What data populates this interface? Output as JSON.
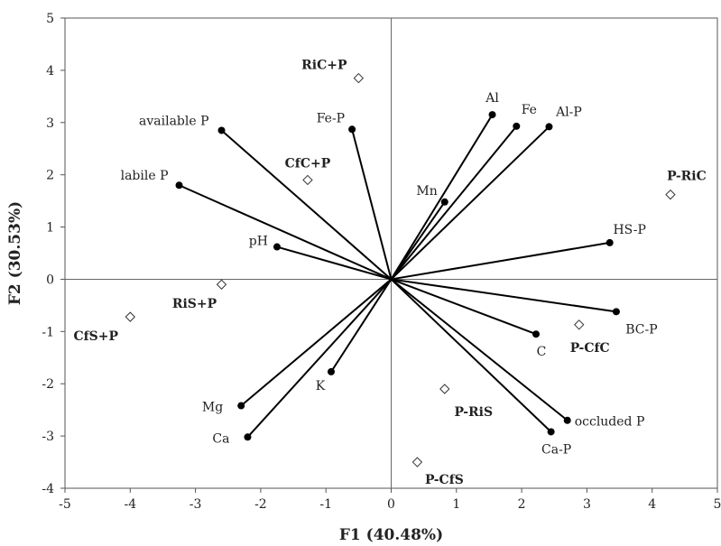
{
  "chart_data": {
    "type": "scatter",
    "title": "",
    "xlabel": "F1 (40.48%)",
    "ylabel": "F2 (30.53%)",
    "xlim": [
      -5,
      5
    ],
    "ylim": [
      -4,
      5
    ],
    "xticks": [
      -5,
      -4,
      -3,
      -2,
      -1,
      0,
      1,
      2,
      3,
      4,
      5
    ],
    "yticks": [
      -4,
      -3,
      -2,
      -1,
      0,
      1,
      2,
      3,
      4,
      5
    ],
    "grid": false,
    "variables": [
      {
        "name": "available P",
        "x": -2.6,
        "y": 2.85
      },
      {
        "name": "labile P",
        "x": -3.25,
        "y": 1.8
      },
      {
        "name": "pH",
        "x": -1.75,
        "y": 0.62
      },
      {
        "name": "Fe-P",
        "x": -0.6,
        "y": 2.87
      },
      {
        "name": "Al",
        "x": 1.55,
        "y": 3.15
      },
      {
        "name": "Fe",
        "x": 1.92,
        "y": 2.93
      },
      {
        "name": "Al-P",
        "x": 2.42,
        "y": 2.92
      },
      {
        "name": "Mn",
        "x": 0.82,
        "y": 1.48
      },
      {
        "name": "HS-P",
        "x": 3.35,
        "y": 0.7
      },
      {
        "name": "BC-P",
        "x": 3.45,
        "y": -0.62
      },
      {
        "name": "C",
        "x": 2.22,
        "y": -1.05
      },
      {
        "name": "occluded P",
        "x": 2.7,
        "y": -2.7
      },
      {
        "name": "Ca-P",
        "x": 2.45,
        "y": -2.92
      },
      {
        "name": "K",
        "x": -0.92,
        "y": -1.77
      },
      {
        "name": "Mg",
        "x": -2.3,
        "y": -2.42
      },
      {
        "name": "Ca",
        "x": -2.2,
        "y": -3.02
      }
    ],
    "observations": [
      {
        "name": "RiC+P",
        "x": -0.5,
        "y": 3.85
      },
      {
        "name": "CfC+P",
        "x": -1.28,
        "y": 1.9
      },
      {
        "name": "RiS+P",
        "x": -2.6,
        "y": -0.1
      },
      {
        "name": "CfS+P",
        "x": -4.0,
        "y": -0.72
      },
      {
        "name": "P-RiC",
        "x": 4.28,
        "y": 1.62
      },
      {
        "name": "P-CfC",
        "x": 2.88,
        "y": -0.87
      },
      {
        "name": "P-RiS",
        "x": 0.82,
        "y": -2.1
      },
      {
        "name": "P-CfS",
        "x": 0.4,
        "y": -3.5
      }
    ]
  }
}
